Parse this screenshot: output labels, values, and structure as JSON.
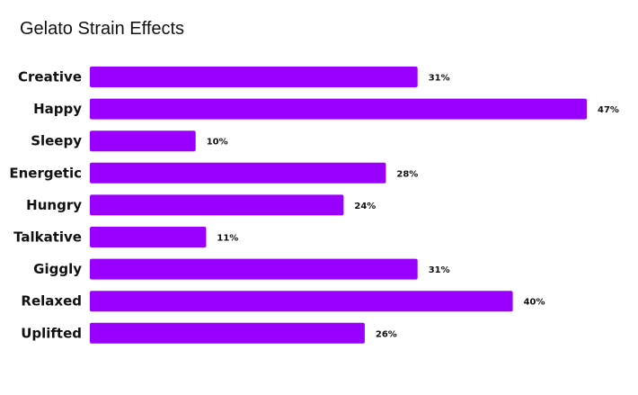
{
  "chart_data": {
    "type": "bar",
    "orientation": "horizontal",
    "title": "Gelato Strain Effects",
    "categories": [
      "Creative",
      "Happy",
      "Sleepy",
      "Energetic",
      "Hungry",
      "Talkative",
      "Giggly",
      "Relaxed",
      "Uplifted"
    ],
    "values": [
      31,
      47,
      10,
      28,
      24,
      11,
      31,
      40,
      26
    ],
    "value_labels": [
      "31%",
      "47%",
      "10%",
      "28%",
      "24%",
      "11%",
      "31%",
      "40%",
      "26%"
    ],
    "unit": "%",
    "xlim": [
      0,
      47
    ],
    "grid": false,
    "legend": "none",
    "bar_color": "#9900ff"
  }
}
